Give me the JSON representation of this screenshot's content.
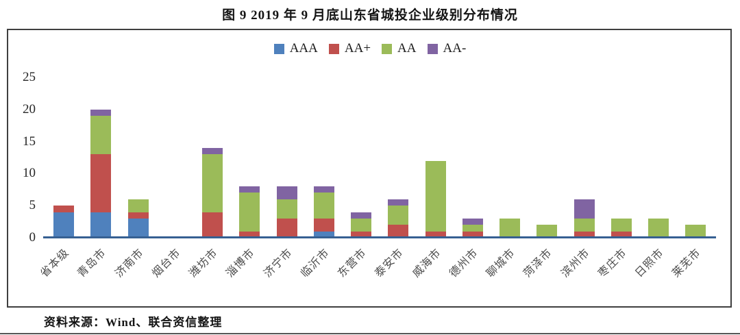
{
  "title": "图 9  2019 年 9 月底山东省城投企业级别分布情况",
  "source_note": "资料来源：Wind、联合资信整理",
  "chart_data": {
    "type": "bar",
    "stacked": true,
    "title": "图 9  2019 年 9 月底山东省城投企业级别分布情况",
    "xlabel": "",
    "ylabel": "",
    "ylim": [
      0,
      25
    ],
    "y_ticks": [
      0,
      5,
      10,
      15,
      20,
      25
    ],
    "grid": false,
    "legend_position": "top-center",
    "axis_line_color": "#366092",
    "categories": [
      "省本级",
      "青岛市",
      "济南市",
      "烟台市",
      "潍坊市",
      "淄博市",
      "济宁市",
      "临沂市",
      "东营市",
      "泰安市",
      "威海市",
      "德州市",
      "聊城市",
      "菏泽市",
      "滨州市",
      "枣庄市",
      "日照市",
      "莱芜市"
    ],
    "series": [
      {
        "name": "AAA",
        "color": "#4F81BD",
        "values": [
          4,
          4,
          3,
          0,
          0,
          0,
          0,
          1,
          0,
          0,
          0,
          0,
          0,
          0,
          0,
          0,
          0,
          0
        ]
      },
      {
        "name": "AA+",
        "color": "#C0504D",
        "values": [
          1,
          9,
          1,
          0,
          4,
          1,
          3,
          2,
          1,
          2,
          1,
          1,
          0,
          0,
          1,
          1,
          0,
          0
        ]
      },
      {
        "name": "AA",
        "color": "#9BBB59",
        "values": [
          0,
          6,
          2,
          0,
          9,
          6,
          3,
          4,
          2,
          3,
          11,
          1,
          3,
          2,
          2,
          2,
          3,
          2
        ]
      },
      {
        "name": "AA-",
        "color": "#8064A2",
        "values": [
          0,
          1,
          0,
          0,
          1,
          1,
          2,
          1,
          1,
          1,
          0,
          1,
          0,
          0,
          3,
          0,
          0,
          0
        ]
      }
    ],
    "totals": [
      5,
      20,
      6,
      0,
      14,
      8,
      8,
      8,
      4,
      6,
      12,
      3,
      3,
      2,
      6,
      3,
      3,
      2
    ]
  }
}
